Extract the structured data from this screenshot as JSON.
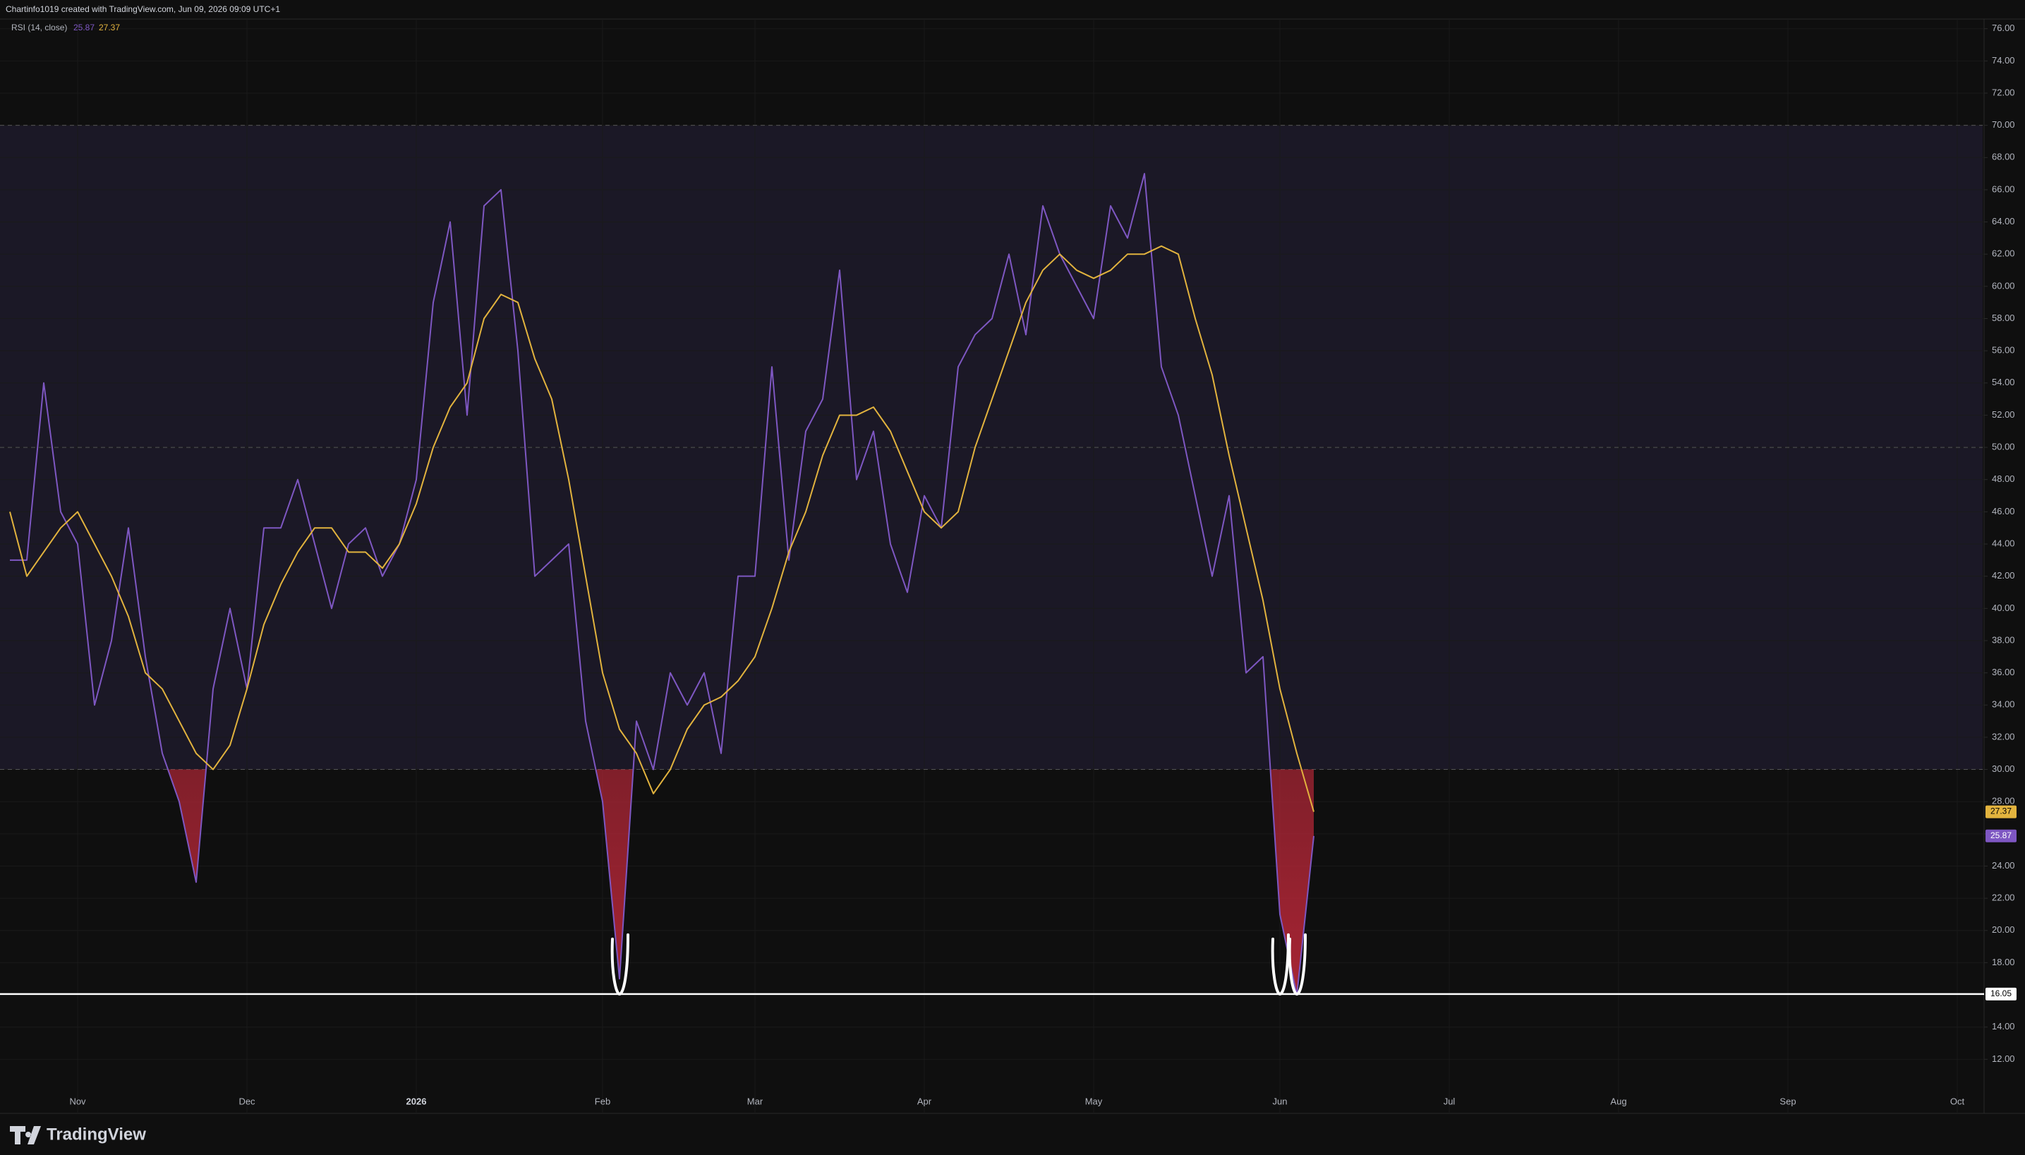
{
  "header": "Chartinfo1019 created with TradingView.com, Jun 09, 2026 09:09 UTC+1",
  "brand": "TradingView",
  "chart_data": {
    "type": "line",
    "title": "RSI (14, close)",
    "categories": [
      null,
      null,
      null,
      null,
      "Nov",
      null,
      null,
      null,
      null,
      null,
      null,
      null,
      null,
      null,
      "Dec",
      null,
      null,
      null,
      null,
      null,
      null,
      null,
      null,
      null,
      "2026",
      null,
      null,
      null,
      null,
      null,
      null,
      null,
      null,
      null,
      null,
      "Feb",
      null,
      null,
      null,
      null,
      null,
      null,
      null,
      null,
      "Mar",
      null,
      null,
      null,
      null,
      null,
      null,
      null,
      null,
      null,
      "Apr",
      null,
      null,
      null,
      null,
      null,
      null,
      null,
      null,
      null,
      "May",
      null,
      null,
      null,
      null,
      null,
      null,
      null,
      null,
      null,
      null,
      "Jun",
      null,
      null,
      null,
      null,
      null,
      null,
      null,
      null,
      null,
      "Jul",
      null,
      null,
      null,
      null,
      null,
      null,
      null,
      null,
      null,
      "Aug",
      null,
      null,
      null,
      null,
      null,
      null,
      null,
      null,
      null,
      "Sep",
      null,
      null,
      null,
      null,
      null,
      null,
      null,
      null,
      null,
      "Oct",
      null
    ],
    "series": [
      {
        "name": "RSI (14, close)",
        "color": "#7e57c2",
        "values": [
          43,
          43,
          54,
          46,
          44,
          34,
          38,
          45,
          37,
          31,
          28,
          23,
          35,
          40,
          35,
          45,
          45,
          48,
          44,
          40,
          44,
          45,
          42,
          44,
          48,
          59,
          64,
          52,
          65,
          66,
          56,
          42,
          43,
          44,
          33,
          28,
          17,
          33,
          30,
          36,
          34,
          36,
          31,
          42,
          42,
          55,
          43,
          51,
          53,
          61,
          48,
          51,
          44,
          41,
          47,
          45,
          55,
          57,
          58,
          62,
          57,
          65,
          62,
          60,
          58,
          65,
          63,
          67,
          55,
          52,
          47,
          42,
          47,
          36,
          37,
          21,
          16,
          25.87,
          null,
          null,
          null,
          null,
          null,
          null,
          null,
          null,
          null,
          null,
          null,
          null,
          null,
          null,
          null,
          null,
          null,
          null,
          null,
          null,
          null,
          null,
          null,
          null,
          null,
          null,
          null,
          null,
          null,
          null,
          null,
          null,
          null,
          null,
          null,
          null,
          null,
          null,
          null
        ]
      },
      {
        "color": "#e2b33e",
        "values": [
          46,
          42,
          43.5,
          45,
          46,
          44,
          42,
          39.5,
          36,
          35,
          33,
          31,
          30,
          31.5,
          35,
          39,
          41.5,
          43.5,
          45,
          45,
          43.5,
          43.5,
          42.5,
          44,
          46.5,
          50,
          52.5,
          54,
          58,
          59.5,
          59,
          55.5,
          53,
          48,
          42,
          36,
          32.5,
          31,
          28.5,
          30,
          32.5,
          34,
          34.5,
          35.5,
          37,
          40,
          43.5,
          46,
          49.5,
          52,
          52,
          52.5,
          51,
          48.5,
          46,
          45,
          46,
          50,
          53,
          56,
          59,
          61,
          62,
          61,
          60.5,
          61,
          62,
          62,
          62.5,
          62,
          58,
          54.5,
          49.5,
          45,
          40.5,
          35,
          31,
          27.37,
          null,
          null,
          null,
          null,
          null,
          null,
          null,
          null,
          null,
          null,
          null,
          null,
          null,
          null,
          null,
          null,
          null,
          null,
          null,
          null,
          null,
          null,
          null,
          null,
          null,
          null,
          null,
          null,
          null,
          null,
          null,
          null,
          null,
          null,
          null,
          null,
          null,
          null,
          null
        ]
      }
    ],
    "levels": [
      70,
      50,
      30
    ],
    "band_color": "#1b1826",
    "oversold_color": "#c2283a",
    "hline": {
      "value": 16.05,
      "color": "#ffffff"
    },
    "ylim": [
      10,
      76.6
    ],
    "yticks": [
      {
        "value": 12,
        "label": "12.00"
      },
      {
        "value": 14,
        "label": "14.00"
      },
      {
        "value": 16,
        "label": "16.00"
      },
      {
        "value": 18,
        "label": "18.00"
      },
      {
        "value": 20,
        "label": "20.00"
      },
      {
        "value": 22,
        "label": "22.00"
      },
      {
        "value": 24,
        "label": "24.00"
      },
      {
        "value": 26,
        "label": "26.00"
      },
      {
        "value": 28,
        "label": "28.00"
      },
      {
        "value": 30,
        "label": "30.00"
      },
      {
        "value": 32,
        "label": "32.00"
      },
      {
        "value": 34,
        "label": "34.00"
      },
      {
        "value": 36,
        "label": "36.00"
      },
      {
        "value": 38,
        "label": "38.00"
      },
      {
        "value": 40,
        "label": "40.00"
      },
      {
        "value": 42,
        "label": "42.00"
      },
      {
        "value": 44,
        "label": "44.00"
      },
      {
        "value": 46,
        "label": "46.00"
      },
      {
        "value": 48,
        "label": "48.00"
      },
      {
        "value": 50,
        "label": "50.00"
      },
      {
        "value": 52,
        "label": "52.00"
      },
      {
        "value": 54,
        "label": "54.00"
      },
      {
        "value": 56,
        "label": "56.00"
      },
      {
        "value": 58,
        "label": "58.00"
      },
      {
        "value": 60,
        "label": "60.00"
      },
      {
        "value": 62,
        "label": "62.00"
      },
      {
        "value": 64,
        "label": "64.00"
      },
      {
        "value": 66,
        "label": "66.00"
      },
      {
        "value": 68,
        "label": "68.00"
      },
      {
        "value": 70,
        "label": "70.00"
      },
      {
        "value": 72,
        "label": "72.00"
      },
      {
        "value": 74,
        "label": "74.00"
      },
      {
        "value": 76,
        "label": "76.00"
      }
    ],
    "grid": true
  }
}
